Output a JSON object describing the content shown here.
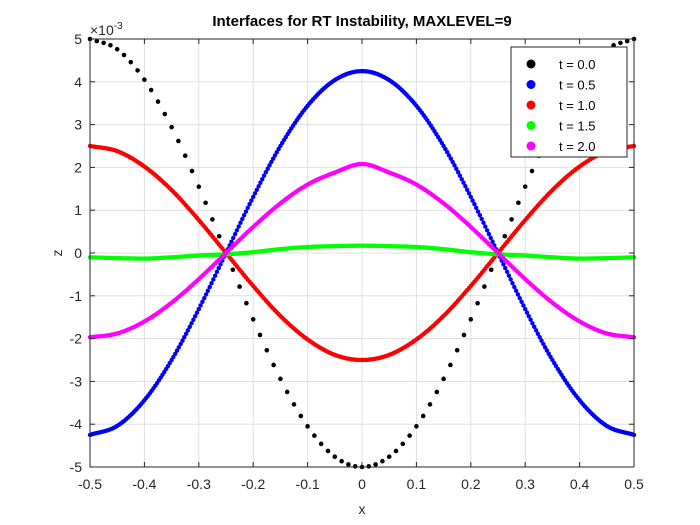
{
  "chart_data": {
    "type": "scatter",
    "title": "Interfaces for RT Instability, MAXLEVEL=9",
    "xlabel": "x",
    "ylabel": "z",
    "y_multiplier_label": "×10",
    "y_multiplier_exponent": "-3",
    "xlim": [
      -0.5,
      0.5
    ],
    "ylim": [
      -5,
      5
    ],
    "x_ticks": [
      -0.5,
      -0.4,
      -0.3,
      -0.2,
      -0.1,
      0,
      0.1,
      0.2,
      0.3,
      0.4,
      0.5
    ],
    "x_tick_labels": [
      "-0.5",
      "-0.4",
      "-0.3",
      "-0.2",
      "-0.1",
      "0",
      "0.1",
      "0.2",
      "0.3",
      "0.4",
      "0.5"
    ],
    "y_ticks": [
      -5,
      -4,
      -3,
      -2,
      -1,
      0,
      1,
      2,
      3,
      4,
      5
    ],
    "y_tick_labels": [
      "-5",
      "-4",
      "-3",
      "-2",
      "-1",
      "0",
      "1",
      "2",
      "3",
      "4",
      "5"
    ],
    "grid": true,
    "legend_position": "top-right",
    "series": [
      {
        "name": "t = 0.0",
        "color": "#000000",
        "marker": "dots-sparse",
        "x": [
          -0.5,
          -0.45,
          -0.4,
          -0.35,
          -0.3,
          -0.25,
          -0.2,
          -0.15,
          -0.1,
          -0.05,
          0,
          0.05,
          0.1,
          0.15,
          0.2,
          0.25,
          0.3,
          0.35,
          0.4,
          0.45,
          0.5
        ],
        "y": [
          5.0,
          4.76,
          4.05,
          2.94,
          1.55,
          0.0,
          -1.55,
          -2.94,
          -4.05,
          -4.76,
          -5.0,
          -4.76,
          -4.05,
          -2.94,
          -1.55,
          0.0,
          1.55,
          2.94,
          4.05,
          4.76,
          5.0
        ]
      },
      {
        "name": "t = 0.5",
        "color": "#0000ff",
        "marker": "dots-dense",
        "x": [
          -0.5,
          -0.45,
          -0.4,
          -0.35,
          -0.3,
          -0.25,
          -0.2,
          -0.15,
          -0.1,
          -0.05,
          0,
          0.05,
          0.1,
          0.15,
          0.2,
          0.25,
          0.3,
          0.35,
          0.4,
          0.45,
          0.5
        ],
        "y": [
          -4.25,
          -4.04,
          -3.44,
          -2.5,
          -1.31,
          0.0,
          1.31,
          2.5,
          3.44,
          4.04,
          4.25,
          4.04,
          3.44,
          2.5,
          1.31,
          0.0,
          -1.31,
          -2.5,
          -3.44,
          -4.04,
          -4.25
        ]
      },
      {
        "name": "t = 1.0",
        "color": "#ff0000",
        "marker": "dots-dense",
        "x": [
          -0.5,
          -0.45,
          -0.4,
          -0.35,
          -0.3,
          -0.25,
          -0.2,
          -0.15,
          -0.1,
          -0.05,
          0,
          0.05,
          0.1,
          0.15,
          0.2,
          0.25,
          0.3,
          0.35,
          0.4,
          0.45,
          0.5
        ],
        "y": [
          2.5,
          2.38,
          2.02,
          1.47,
          0.77,
          0.0,
          -0.77,
          -1.47,
          -2.02,
          -2.38,
          -2.5,
          -2.38,
          -2.02,
          -1.47,
          -0.77,
          0.0,
          0.77,
          1.47,
          2.02,
          2.38,
          2.5
        ]
      },
      {
        "name": "t = 1.5",
        "color": "#00ff00",
        "marker": "dots-dense",
        "x": [
          -0.5,
          -0.45,
          -0.4,
          -0.35,
          -0.3,
          -0.25,
          -0.2,
          -0.15,
          -0.1,
          -0.05,
          0,
          0.05,
          0.1,
          0.15,
          0.2,
          0.25,
          0.3,
          0.35,
          0.4,
          0.45,
          0.5
        ],
        "y": [
          -0.1,
          -0.12,
          -0.13,
          -0.1,
          -0.06,
          -0.03,
          0.02,
          0.09,
          0.14,
          0.16,
          0.17,
          0.16,
          0.14,
          0.09,
          0.02,
          -0.03,
          -0.06,
          -0.1,
          -0.13,
          -0.12,
          -0.1
        ]
      },
      {
        "name": "t = 2.0",
        "color": "#ff00ff",
        "marker": "dots-dense",
        "x": [
          -0.5,
          -0.45,
          -0.4,
          -0.35,
          -0.3,
          -0.25,
          -0.2,
          -0.15,
          -0.1,
          -0.05,
          0,
          0.05,
          0.1,
          0.15,
          0.2,
          0.25,
          0.3,
          0.35,
          0.4,
          0.45,
          0.5
        ],
        "y": [
          -1.97,
          -1.88,
          -1.6,
          -1.16,
          -0.61,
          0.0,
          0.61,
          1.16,
          1.6,
          1.88,
          2.08,
          1.88,
          1.6,
          1.16,
          0.61,
          0.0,
          -0.61,
          -1.16,
          -1.6,
          -1.88,
          -1.97
        ]
      }
    ]
  }
}
